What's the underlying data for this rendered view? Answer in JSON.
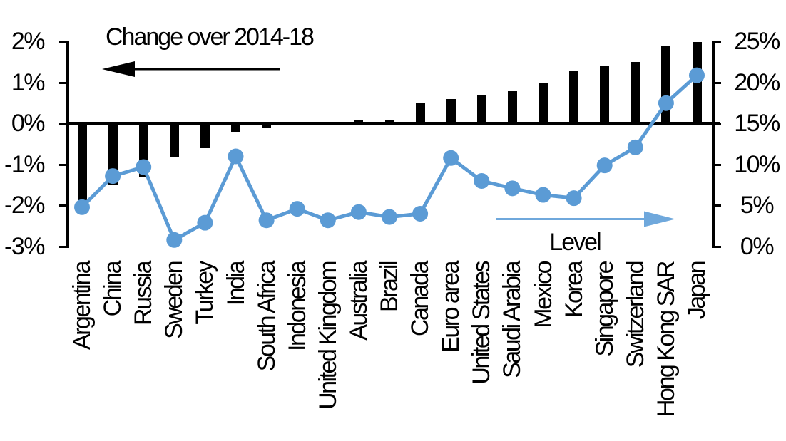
{
  "annotations": {
    "bars_label": "Change over 2014-18",
    "line_label": "Level"
  },
  "left_axis": {
    "ticks": [
      "2%",
      "1%",
      "0%",
      "-1%",
      "-2%",
      "-3%"
    ]
  },
  "right_axis": {
    "ticks": [
      "25%",
      "20%",
      "15%",
      "10%",
      "5%",
      "0%"
    ]
  },
  "chart_data": {
    "type": "combo bar+line",
    "categories": [
      "Argentina",
      "China",
      "Russia",
      "Sweden",
      "Turkey",
      "India",
      "South Africa",
      "Indonesia",
      "United Kingdom",
      "Australia",
      "Brazil",
      "Canada",
      "Euro area",
      "United States",
      "Saudi Arabia",
      "Mexico",
      "Korea",
      "Singapore",
      "Switzerland",
      "Hong Kong SAR",
      "Japan"
    ],
    "series": [
      {
        "name": "Change over 2014-18",
        "type": "bar",
        "axis": "left",
        "unit": "%",
        "color": "#000000",
        "values": [
          -1.9,
          -1.5,
          -1.3,
          -0.8,
          -0.6,
          -0.2,
          -0.1,
          0,
          0,
          0.1,
          0.1,
          0.5,
          0.6,
          0.7,
          0.8,
          1.0,
          1.3,
          1.4,
          1.5,
          1.9,
          2.0
        ]
      },
      {
        "name": "Level",
        "type": "line",
        "axis": "right",
        "unit": "%",
        "color": "#5B9BD5",
        "values": [
          4.8,
          8.6,
          9.7,
          0.8,
          2.9,
          11.0,
          3.2,
          4.6,
          3.2,
          4.2,
          3.6,
          4.0,
          10.8,
          8.0,
          7.1,
          6.3,
          5.9,
          9.9,
          12.1,
          17.5,
          20.9
        ]
      }
    ],
    "left_axis_range": [
      -3,
      2
    ],
    "left_axis_tick_step": 1,
    "right_axis_range": [
      0,
      25
    ],
    "right_axis_tick_step": 5,
    "grid": false,
    "legend_position": "in-plot text annotations with direction arrows",
    "arrow_colors": {
      "bars_arrow": "#000000",
      "line_arrow": "#6FA8DC"
    }
  }
}
